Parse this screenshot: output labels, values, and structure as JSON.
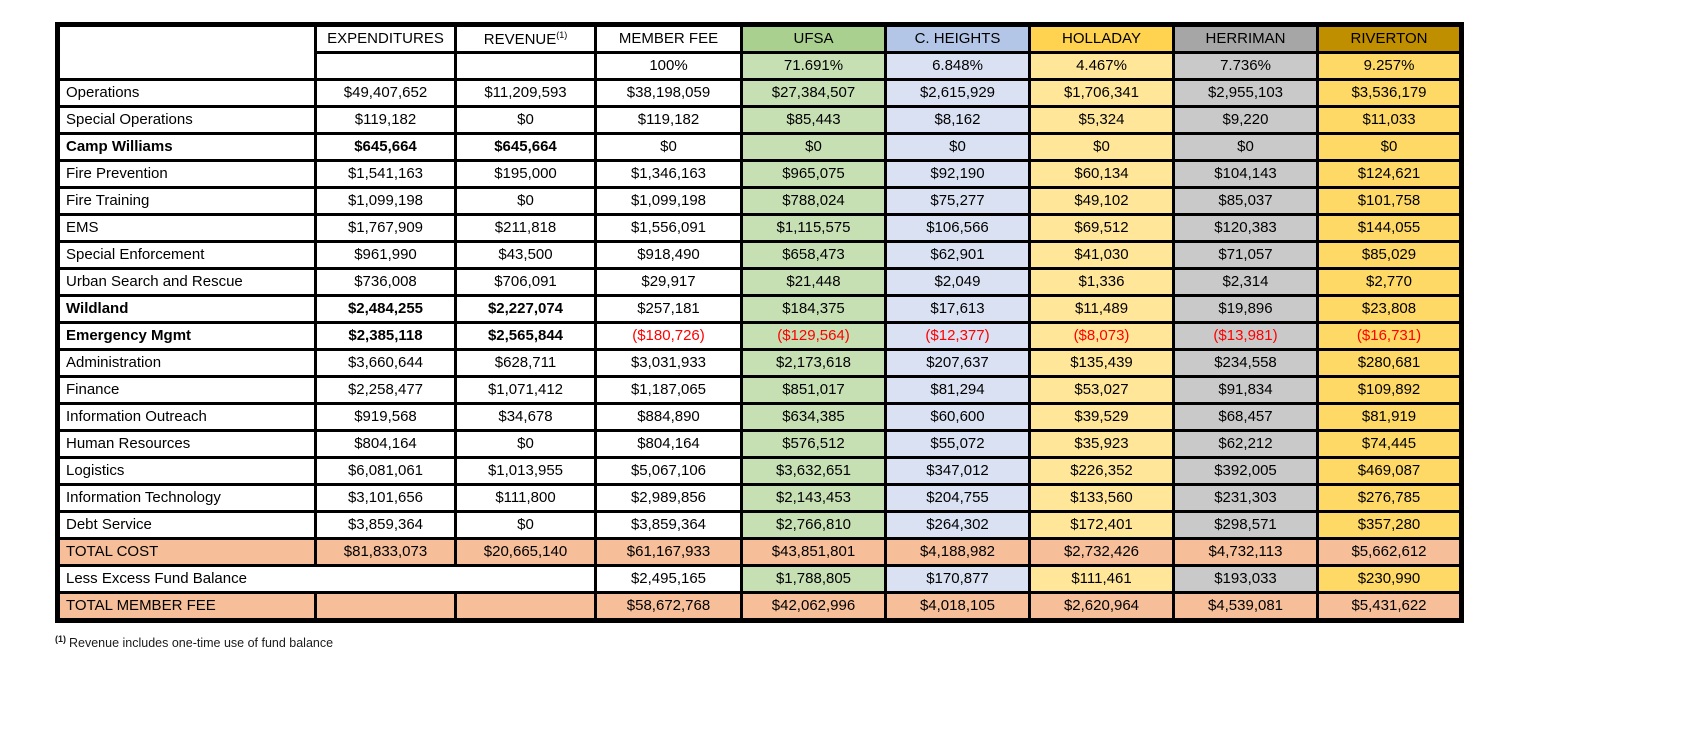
{
  "table": {
    "columns": [
      {
        "key": "expenditures",
        "header": "EXPENDITURES",
        "percent": "",
        "group": "plain"
      },
      {
        "key": "revenue",
        "header": "REVENUE",
        "header_sup": "(1)",
        "percent": "",
        "group": "plain"
      },
      {
        "key": "member_fee",
        "header": "MEMBER FEE",
        "percent": "100%",
        "group": "plain"
      },
      {
        "key": "ufsa",
        "header": "UFSA",
        "percent": "71.691%",
        "group": "member"
      },
      {
        "key": "c_heights",
        "header": "C. HEIGHTS",
        "percent": "6.848%",
        "group": "member"
      },
      {
        "key": "holladay",
        "header": "HOLLADAY",
        "percent": "4.467%",
        "group": "member"
      },
      {
        "key": "herriman",
        "header": "HERRIMAN",
        "percent": "7.736%",
        "group": "member"
      },
      {
        "key": "riverton",
        "header": "RIVERTON",
        "percent": "9.257%",
        "group": "member"
      }
    ],
    "rows": [
      {
        "label": "Operations",
        "type": "normal",
        "bold": false,
        "cells": [
          "$49,407,652",
          "$11,209,593",
          "$38,198,059",
          "$27,384,507",
          "$2,615,929",
          "$1,706,341",
          "$2,955,103",
          "$3,536,179"
        ]
      },
      {
        "label": "Special Operations",
        "type": "normal",
        "bold": false,
        "cells": [
          "$119,182",
          "$0",
          "$119,182",
          "$85,443",
          "$8,162",
          "$5,324",
          "$9,220",
          "$11,033"
        ]
      },
      {
        "label": "Camp Williams",
        "type": "normal",
        "bold": true,
        "cells": [
          "$645,664",
          "$645,664",
          "$0",
          "$0",
          "$0",
          "$0",
          "$0",
          "$0"
        ]
      },
      {
        "label": "Fire Prevention",
        "type": "normal",
        "bold": false,
        "cells": [
          "$1,541,163",
          "$195,000",
          "$1,346,163",
          "$965,075",
          "$92,190",
          "$60,134",
          "$104,143",
          "$124,621"
        ]
      },
      {
        "label": "Fire Training",
        "type": "normal",
        "bold": false,
        "cells": [
          "$1,099,198",
          "$0",
          "$1,099,198",
          "$788,024",
          "$75,277",
          "$49,102",
          "$85,037",
          "$101,758"
        ]
      },
      {
        "label": "EMS",
        "type": "normal",
        "bold": false,
        "cells": [
          "$1,767,909",
          "$211,818",
          "$1,556,091",
          "$1,115,575",
          "$106,566",
          "$69,512",
          "$120,383",
          "$144,055"
        ]
      },
      {
        "label": "Special Enforcement",
        "type": "normal",
        "bold": false,
        "cells": [
          "$961,990",
          "$43,500",
          "$918,490",
          "$658,473",
          "$62,901",
          "$41,030",
          "$71,057",
          "$85,029"
        ]
      },
      {
        "label": "Urban Search and Rescue",
        "type": "normal",
        "bold": false,
        "cells": [
          "$736,008",
          "$706,091",
          "$29,917",
          "$21,448",
          "$2,049",
          "$1,336",
          "$2,314",
          "$2,770"
        ]
      },
      {
        "label": "Wildland",
        "type": "normal",
        "bold": true,
        "cells": [
          "$2,484,255",
          "$2,227,074",
          "$257,181",
          "$184,375",
          "$17,613",
          "$11,489",
          "$19,896",
          "$23,808"
        ]
      },
      {
        "label": "Emergency Mgmt",
        "type": "normal",
        "bold": true,
        "negatives_from": 2,
        "cells": [
          "$2,385,118",
          "$2,565,844",
          "($180,726)",
          "($129,564)",
          "($12,377)",
          "($8,073)",
          "($13,981)",
          "($16,731)"
        ]
      },
      {
        "label": "Administration",
        "type": "normal",
        "bold": false,
        "cells": [
          "$3,660,644",
          "$628,711",
          "$3,031,933",
          "$2,173,618",
          "$207,637",
          "$135,439",
          "$234,558",
          "$280,681"
        ]
      },
      {
        "label": "Finance",
        "type": "normal",
        "bold": false,
        "cells": [
          "$2,258,477",
          "$1,071,412",
          "$1,187,065",
          "$851,017",
          "$81,294",
          "$53,027",
          "$91,834",
          "$109,892"
        ]
      },
      {
        "label": "Information Outreach",
        "type": "normal",
        "bold": false,
        "cells": [
          "$919,568",
          "$34,678",
          "$884,890",
          "$634,385",
          "$60,600",
          "$39,529",
          "$68,457",
          "$81,919"
        ]
      },
      {
        "label": "Human Resources",
        "type": "normal",
        "bold": false,
        "cells": [
          "$804,164",
          "$0",
          "$804,164",
          "$576,512",
          "$55,072",
          "$35,923",
          "$62,212",
          "$74,445"
        ]
      },
      {
        "label": "Logistics",
        "type": "normal",
        "bold": false,
        "cells": [
          "$6,081,061",
          "$1,013,955",
          "$5,067,106",
          "$3,632,651",
          "$347,012",
          "$226,352",
          "$392,005",
          "$469,087"
        ]
      },
      {
        "label": "Information Technology",
        "type": "normal",
        "bold": false,
        "cells": [
          "$3,101,656",
          "$111,800",
          "$2,989,856",
          "$2,143,453",
          "$204,755",
          "$133,560",
          "$231,303",
          "$276,785"
        ]
      },
      {
        "label": "Debt Service",
        "type": "normal",
        "bold": false,
        "cells": [
          "$3,859,364",
          "$0",
          "$3,859,364",
          "$2,766,810",
          "$264,302",
          "$172,401",
          "$298,571",
          "$357,280"
        ]
      },
      {
        "label": "TOTAL COST",
        "type": "total",
        "bold": false,
        "cells": [
          "$81,833,073",
          "$20,665,140",
          "$61,167,933",
          "$43,851,801",
          "$4,188,982",
          "$2,732,426",
          "$4,732,113",
          "$5,662,612"
        ]
      },
      {
        "label": "Less Excess Fund Balance",
        "type": "span-label",
        "bold": false,
        "cells": [
          "",
          "",
          "$2,495,165",
          "$1,788,805",
          "$170,877",
          "$111,461",
          "$193,033",
          "$230,990"
        ]
      },
      {
        "label": "TOTAL MEMBER FEE",
        "type": "total",
        "bold": false,
        "cells": [
          "",
          "",
          "$58,672,768",
          "$42,062,996",
          "$4,018,105",
          "$2,620,964",
          "$4,539,081",
          "$5,431,622"
        ]
      }
    ]
  },
  "footnote": {
    "marker": "(1)",
    "text": "Revenue includes one-time use of fund balance"
  },
  "colors": {
    "ufsa_header": "#A9D08E",
    "ufsa_cell": "#C6E0B4",
    "c_heights_header": "#B4C6E7",
    "c_heights_cell": "#D9E1F2",
    "holladay_header": "#FFD34F",
    "holladay_cell": "#FFE699",
    "herriman_header": "#A6A6A6",
    "herriman_cell": "#C9C9C9",
    "riverton_header": "#BF8F00",
    "riverton_cell": "#FFD966",
    "total_row": "#F6BE99",
    "negative": "#FF0000"
  }
}
